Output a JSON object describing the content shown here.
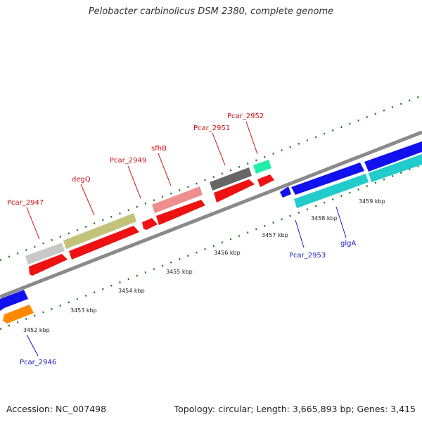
{
  "title": "Pelobacter carbinolicus DSM 2380, complete genome",
  "footer": {
    "accession": "Accession: NC_007498",
    "topology": "Topology: circular; Length: 3,665,893 bp; Genes: 3,415"
  },
  "colors": {
    "backbone": "#8a8a8a",
    "ticks": "#1f7a1f",
    "forward_label": "#cc1111",
    "reverse_label": "#1a1acc"
  },
  "scale_ticks_kbp": [
    "3452 kbp",
    "3453 kbp",
    "3454 kbp",
    "3455 kbp",
    "3456 kbp",
    "3457 kbp",
    "3458 kbp",
    "3459 kbp"
  ],
  "forward_genes": [
    {
      "label": "Pcar_2947",
      "color": "#c8c8c8",
      "arrow_color": "#ee1111"
    },
    {
      "label": "degQ",
      "color": "#c2c27a",
      "arrow_color": "#ee1111"
    },
    {
      "label": "Pcar_2949",
      "color": "#ee1111"
    },
    {
      "label": "sfhB",
      "color": "#ee8f8f",
      "arrow_color": "#ee1111"
    },
    {
      "label": "Pcar_2951",
      "color": "#666666",
      "arrow_color": "#ee1111"
    },
    {
      "label": "Pcar_2952",
      "color": "#22eeaa",
      "arrow_color": "#ee1111"
    }
  ],
  "reverse_genes": [
    {
      "label": "Pcar_2946",
      "color": "#1111ee",
      "arrow_color": "#ff8800"
    },
    {
      "label": "Pcar_2953",
      "color": "#1111ee",
      "arrow_color": "#22cccc"
    },
    {
      "label": "glgA",
      "color": "#1111ee",
      "arrow_color": "#22cccc"
    }
  ]
}
